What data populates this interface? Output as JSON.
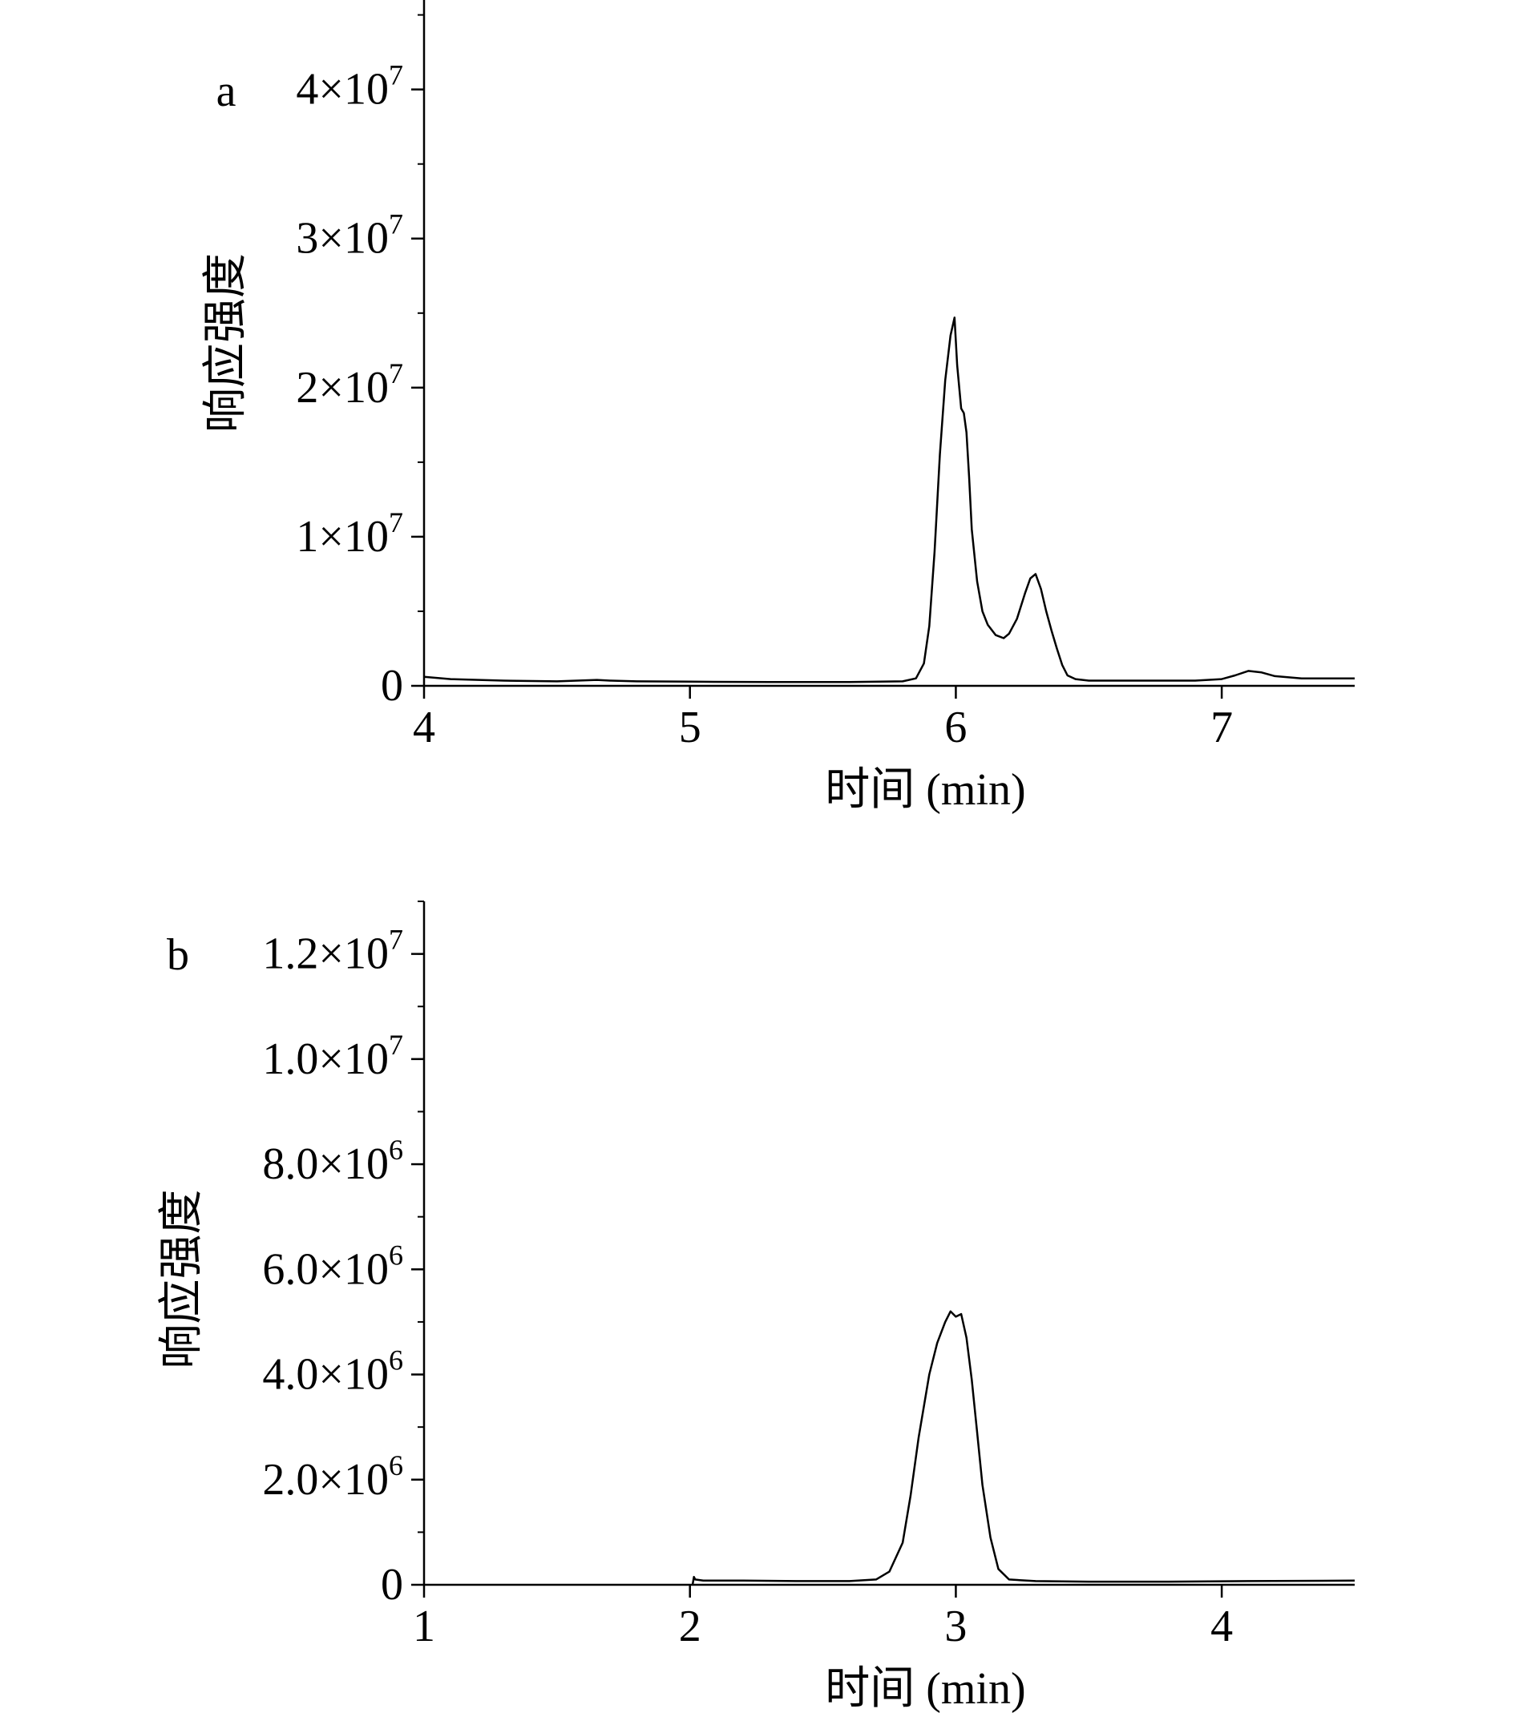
{
  "chart_data": [
    {
      "type": "line",
      "panel_label": "a",
      "xlabel": "时间 (min)",
      "ylabel": "响应强度",
      "xlim": [
        4,
        7.5
      ],
      "ylim": [
        0,
        46000000
      ],
      "x_ticks": [
        4,
        5,
        6,
        7
      ],
      "x_tick_labels": [
        "4",
        "5",
        "6",
        "7"
      ],
      "y_ticks": [
        0,
        10000000,
        20000000,
        30000000,
        40000000
      ],
      "y_tick_labels": [
        {
          "mantissa": "0",
          "exponent": ""
        },
        {
          "mantissa": "1×10",
          "exponent": "7"
        },
        {
          "mantissa": "2×10",
          "exponent": "7"
        },
        {
          "mantissa": "3×10",
          "exponent": "7"
        },
        {
          "mantissa": "4×10",
          "exponent": "7"
        }
      ],
      "y_minor_step": 5000000,
      "series": [
        {
          "x": [
            4.0,
            4.1,
            4.3,
            4.5,
            4.65,
            4.7,
            4.8,
            5.0,
            5.3,
            5.6,
            5.8,
            5.85,
            5.88,
            5.9,
            5.92,
            5.94,
            5.96,
            5.98,
            5.995,
            6.005,
            6.02,
            6.03,
            6.04,
            6.05,
            6.06,
            6.08,
            6.1,
            6.12,
            6.15,
            6.18,
            6.2,
            6.23,
            6.26,
            6.28,
            6.3,
            6.32,
            6.34,
            6.36,
            6.38,
            6.4,
            6.42,
            6.45,
            6.5,
            6.6,
            6.7,
            6.8,
            6.9,
            7.0,
            7.05,
            7.1,
            7.15,
            7.2,
            7.3,
            7.5
          ],
          "y": [
            600000,
            450000,
            350000,
            300000,
            400000,
            350000,
            300000,
            280000,
            250000,
            250000,
            300000,
            500000,
            1500000,
            4000000,
            9000000,
            15500000,
            20500000,
            23500000,
            24700000,
            21500000,
            18600000,
            18300000,
            17000000,
            14000000,
            10500000,
            7000000,
            5000000,
            4100000,
            3400000,
            3200000,
            3500000,
            4500000,
            6200000,
            7200000,
            7500000,
            6500000,
            5000000,
            3700000,
            2500000,
            1400000,
            700000,
            450000,
            350000,
            350000,
            350000,
            350000,
            350000,
            450000,
            700000,
            1000000,
            900000,
            650000,
            500000,
            500000
          ]
        }
      ]
    },
    {
      "type": "line",
      "panel_label": "b",
      "xlabel": "时间 (min)",
      "ylabel": "响应强度",
      "xlim": [
        1,
        4.5
      ],
      "ylim": [
        0,
        13000000
      ],
      "x_ticks": [
        1,
        2,
        3,
        4
      ],
      "x_tick_labels": [
        "1",
        "2",
        "3",
        "4"
      ],
      "y_ticks": [
        0,
        2000000,
        4000000,
        6000000,
        8000000,
        10000000,
        12000000
      ],
      "y_tick_labels": [
        {
          "mantissa": "0",
          "exponent": ""
        },
        {
          "mantissa": "2.0×10",
          "exponent": "6"
        },
        {
          "mantissa": "4.0×10",
          "exponent": "6"
        },
        {
          "mantissa": "6.0×10",
          "exponent": "6"
        },
        {
          "mantissa": "8.0×10",
          "exponent": "6"
        },
        {
          "mantissa": "1.0×10",
          "exponent": "7"
        },
        {
          "mantissa": "1.2×10",
          "exponent": "7"
        }
      ],
      "y_minor_step": 1000000,
      "series": [
        {
          "x": [
            2.01,
            2.015,
            2.02,
            2.05,
            2.2,
            2.4,
            2.6,
            2.7,
            2.75,
            2.8,
            2.83,
            2.86,
            2.9,
            2.93,
            2.96,
            2.98,
            3.0,
            3.02,
            3.04,
            3.06,
            3.08,
            3.1,
            3.13,
            3.16,
            3.2,
            3.3,
            3.5,
            3.8,
            4.1,
            4.5
          ],
          "y": [
            0,
            150000,
            100000,
            80000,
            80000,
            70000,
            70000,
            100000,
            250000,
            800000,
            1700000,
            2800000,
            4000000,
            4600000,
            5000000,
            5200000,
            5100000,
            5150000,
            4700000,
            3900000,
            2900000,
            1900000,
            900000,
            300000,
            100000,
            70000,
            60000,
            60000,
            70000,
            80000
          ]
        }
      ]
    }
  ]
}
